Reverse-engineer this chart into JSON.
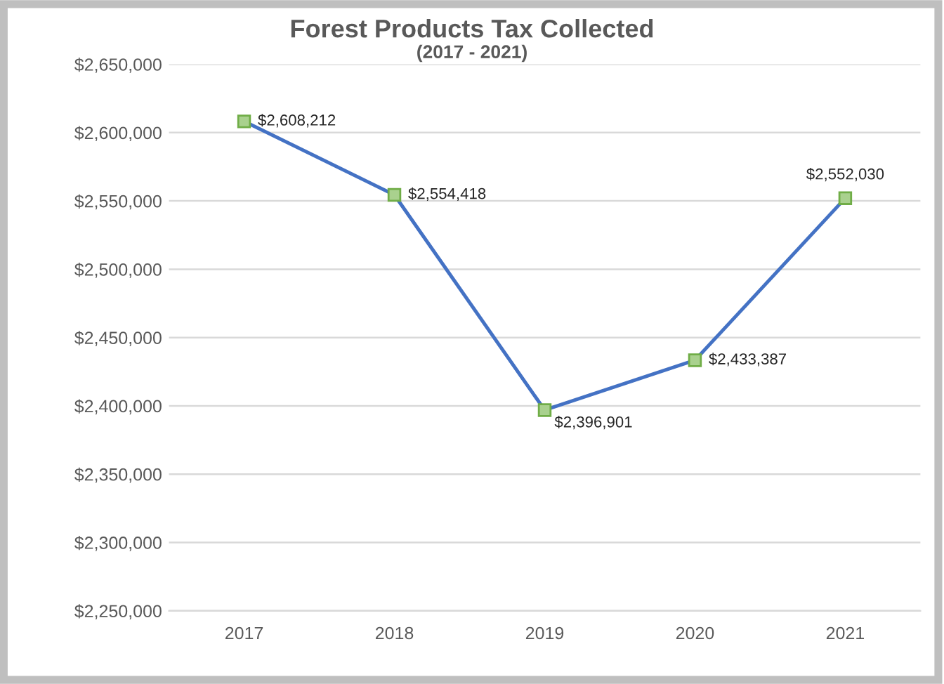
{
  "chart_data": {
    "type": "line",
    "title": "Forest Products Tax Collected",
    "subtitle": "(2017 - 2021)",
    "categories": [
      "2017",
      "2018",
      "2019",
      "2020",
      "2021"
    ],
    "series": [
      {
        "color": "#4472c4",
        "values": [
          2608212,
          2554418,
          2396901,
          2433387,
          2552030
        ],
        "value_labels": [
          "$2,608,212",
          "$2,554,418",
          "$2,396,901",
          "$2,433,387",
          "$2,552,030"
        ]
      }
    ],
    "ylim": [
      2250000,
      2650000
    ],
    "yticks": [
      {
        "value": 2250000,
        "label": "$2,250,000"
      },
      {
        "value": 2300000,
        "label": "$2,300,000"
      },
      {
        "value": 2350000,
        "label": "$2,350,000"
      },
      {
        "value": 2400000,
        "label": "$2,400,000"
      },
      {
        "value": 2450000,
        "label": "$2,450,000"
      },
      {
        "value": 2500000,
        "label": "$2,500,000"
      },
      {
        "value": 2550000,
        "label": "$2,550,000"
      },
      {
        "value": 2600000,
        "label": "$2,600,000"
      },
      {
        "value": 2650000,
        "label": "$2,650,000"
      }
    ],
    "grid": "y",
    "marker": "square",
    "line_style": "solid"
  }
}
